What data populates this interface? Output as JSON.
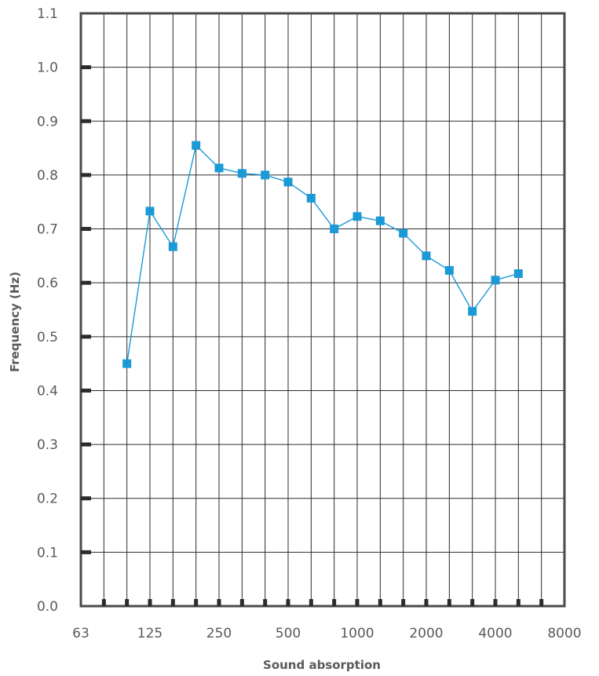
{
  "chart_data": {
    "type": "line",
    "title": "",
    "xlabel": "Sound absorption",
    "ylabel": "Frequency (Hz)",
    "ylim": [
      0,
      1.1
    ],
    "y_ticks": [
      "0.0",
      "0.1",
      "0.2",
      "0.3",
      "0.4",
      "0.5",
      "0.6",
      "0.7",
      "0.8",
      "0.9",
      "1.0",
      "1.1"
    ],
    "x_tick_labels": [
      "63",
      "125",
      "250",
      "500",
      "1000",
      "2000",
      "4000",
      "8000"
    ],
    "x_categories": [
      "63",
      "80",
      "100",
      "125",
      "160",
      "200",
      "250",
      "315",
      "400",
      "500",
      "630",
      "800",
      "1000",
      "1250",
      "1600",
      "2000",
      "2500",
      "3150",
      "4000",
      "5000",
      "6300",
      "8000"
    ],
    "grid": true,
    "series": [
      {
        "name": "Sound absorption",
        "color": "#1b9ad6",
        "x": [
          "100",
          "125",
          "160",
          "200",
          "250",
          "315",
          "400",
          "500",
          "630",
          "800",
          "1000",
          "1250",
          "1600",
          "2000",
          "2500",
          "3150",
          "4000",
          "5000"
        ],
        "values": [
          0.45,
          0.733,
          0.667,
          0.855,
          0.813,
          0.803,
          0.8,
          0.787,
          0.757,
          0.7,
          0.723,
          0.715,
          0.692,
          0.65,
          0.623,
          0.547,
          0.605,
          0.617
        ]
      }
    ]
  }
}
